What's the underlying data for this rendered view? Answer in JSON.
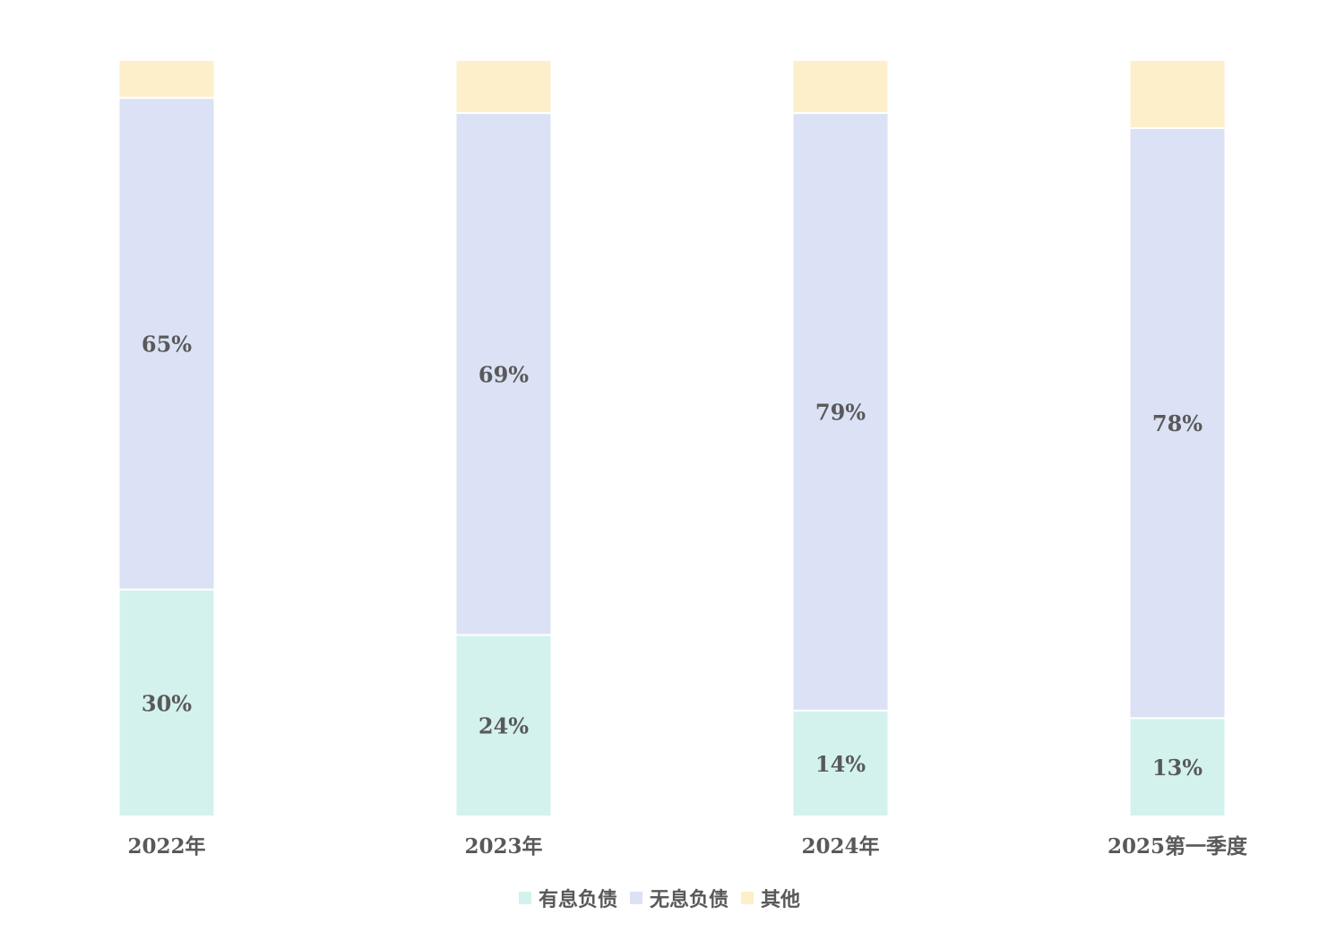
{
  "chart_data": {
    "type": "bar",
    "stacked": true,
    "normalized": true,
    "categories": [
      "2022年",
      "2023年",
      "2024年",
      "2025第一季度"
    ],
    "series": [
      {
        "name": "有息负债",
        "color": "#d3f2ee",
        "values": [
          30,
          24,
          14,
          13
        ],
        "labels": [
          "30%",
          "24%",
          "14%",
          "13%"
        ]
      },
      {
        "name": "无息负债",
        "color": "#dbe2f5",
        "values": [
          65,
          69,
          79,
          78
        ],
        "labels": [
          "65%",
          "69%",
          "79%",
          "78%"
        ]
      },
      {
        "name": "其他",
        "color": "#fdefc9",
        "values": [
          5,
          7,
          7,
          9
        ],
        "labels": []
      }
    ],
    "ylim": [
      0,
      100
    ],
    "grid": false,
    "legend_position": "bottom"
  }
}
